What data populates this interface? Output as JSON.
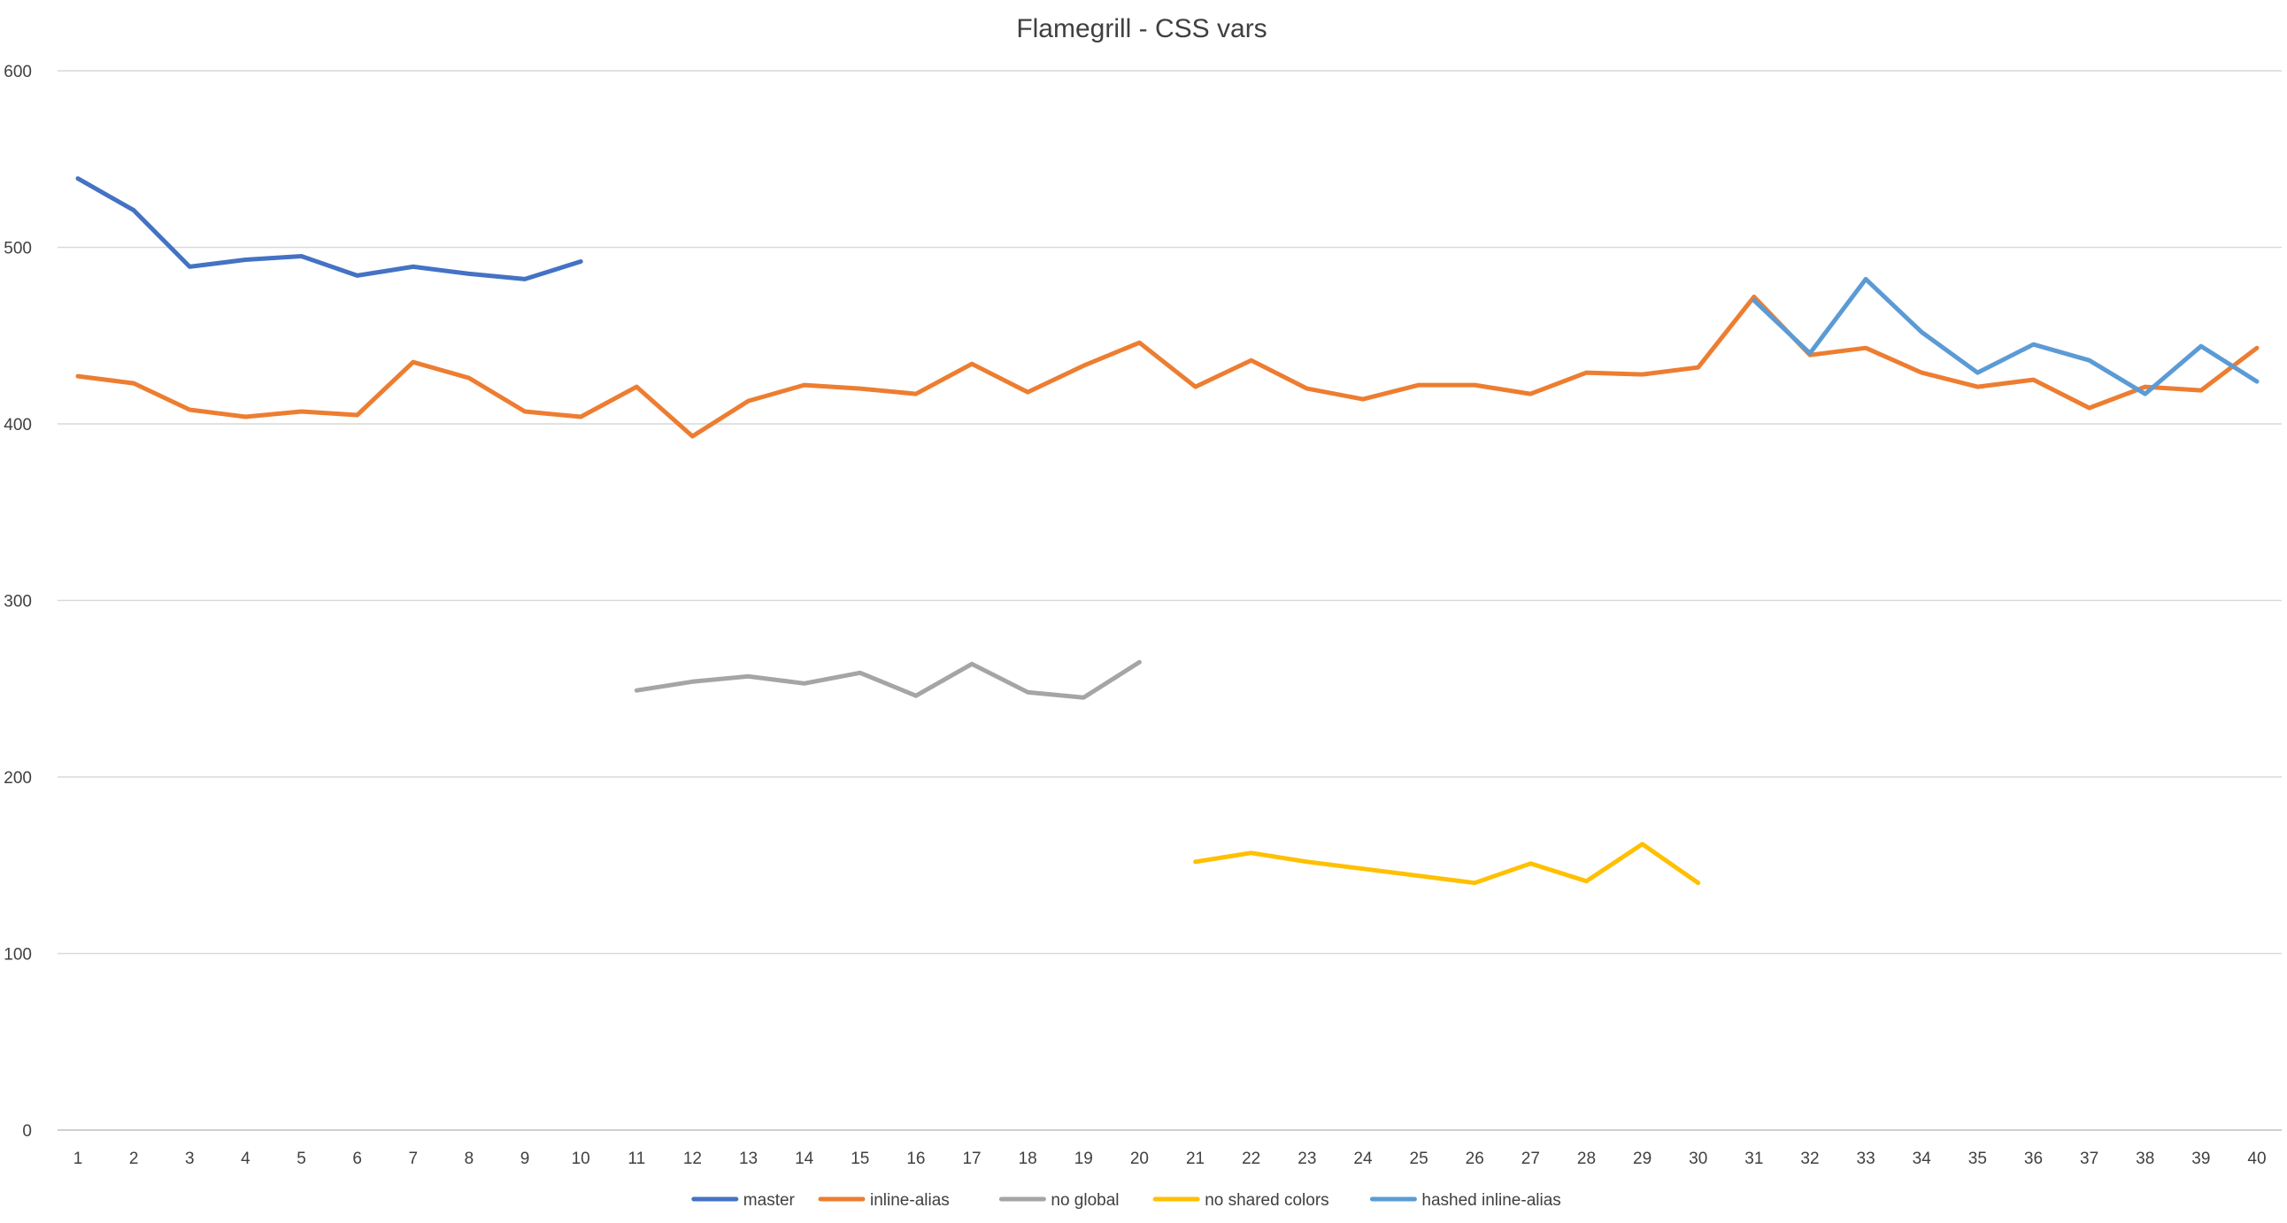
{
  "chart_data": {
    "type": "line",
    "title": "Flamegrill - CSS vars",
    "xlabel": "",
    "ylabel": "",
    "categories": [
      1,
      2,
      3,
      4,
      5,
      6,
      7,
      8,
      9,
      10,
      11,
      12,
      13,
      14,
      15,
      16,
      17,
      18,
      19,
      20,
      21,
      22,
      23,
      24,
      25,
      26,
      27,
      28,
      29,
      30,
      31,
      32,
      33,
      34,
      35,
      36,
      37,
      38,
      39,
      40
    ],
    "ylim": [
      0,
      600
    ],
    "yticks": [
      0,
      100,
      200,
      300,
      400,
      500,
      600
    ],
    "grid": true,
    "legend_position": "bottom",
    "series": [
      {
        "name": "master",
        "color": "#4472C4",
        "values": [
          539,
          521,
          489,
          493,
          495,
          484,
          489,
          485,
          482,
          492,
          null,
          null,
          null,
          null,
          null,
          null,
          null,
          null,
          null,
          null,
          null,
          null,
          null,
          null,
          null,
          null,
          null,
          null,
          null,
          null,
          null,
          null,
          null,
          null,
          null,
          null,
          null,
          null,
          null,
          null
        ]
      },
      {
        "name": "inline-alias",
        "color": "#ED7D31",
        "values": [
          427,
          423,
          408,
          404,
          407,
          405,
          435,
          426,
          407,
          404,
          421,
          393,
          413,
          422,
          420,
          417,
          434,
          418,
          433,
          446,
          421,
          436,
          420,
          414,
          422,
          422,
          417,
          429,
          428,
          432,
          472,
          439,
          443,
          429,
          421,
          425,
          409,
          421,
          419,
          443
        ]
      },
      {
        "name": "no global",
        "color": "#A5A5A5",
        "values": [
          null,
          null,
          null,
          null,
          null,
          null,
          null,
          null,
          null,
          null,
          249,
          254,
          257,
          253,
          259,
          246,
          264,
          248,
          245,
          265,
          null,
          null,
          null,
          null,
          null,
          null,
          null,
          null,
          null,
          null,
          null,
          null,
          null,
          null,
          null,
          null,
          null,
          null,
          null,
          null
        ]
      },
      {
        "name": "no shared colors",
        "color": "#FFC000",
        "values": [
          null,
          null,
          null,
          null,
          null,
          null,
          null,
          null,
          null,
          null,
          null,
          null,
          null,
          null,
          null,
          null,
          null,
          null,
          null,
          null,
          152,
          157,
          152,
          148,
          144,
          140,
          151,
          141,
          162,
          140,
          null,
          null,
          null,
          null,
          null,
          null,
          null,
          null,
          null,
          null
        ]
      },
      {
        "name": "hashed inline-alias",
        "color": "#5B9BD5",
        "values": [
          null,
          null,
          null,
          null,
          null,
          null,
          null,
          null,
          null,
          null,
          null,
          null,
          null,
          null,
          null,
          null,
          null,
          null,
          null,
          null,
          null,
          null,
          null,
          null,
          null,
          null,
          null,
          null,
          null,
          null,
          470,
          440,
          482,
          452,
          429,
          445,
          436,
          417,
          444,
          424
        ]
      }
    ]
  }
}
